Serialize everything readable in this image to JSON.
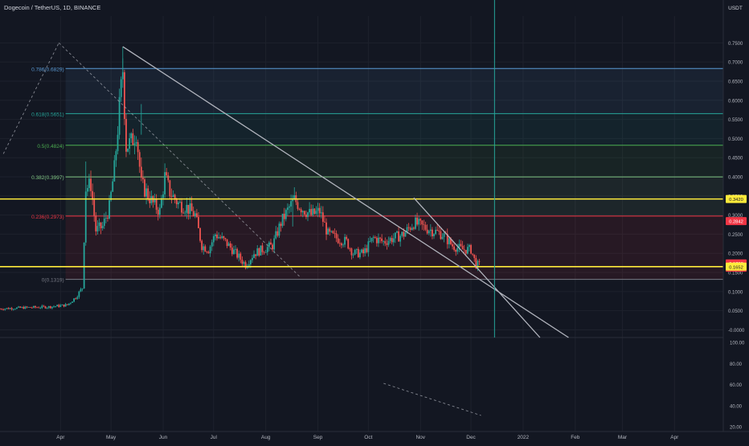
{
  "header": {
    "symbol_title": "Dogecoin / TetherUS, 1D, BINANCE"
  },
  "colors": {
    "background": "#131722",
    "up_candle": "#26a69a",
    "down_candle": "#ef5350",
    "trendline": "#b2b5be",
    "support_resistance": "#ffeb3b",
    "fib_786": "#5b9bd5",
    "fib_618": "#26a69a",
    "fib_500": "#4caf50",
    "fib_382": "#81c784",
    "fib_236": "#f23645",
    "fib_0": "#787b86",
    "price_badge": "#f23645",
    "cursor_line": "#26a69a"
  },
  "price_axis": {
    "currency_label": "USDT",
    "ticks": [
      "0.7500",
      "0.7000",
      "0.6500",
      "0.6000",
      "0.5500",
      "0.5000",
      "0.4500",
      "0.4000",
      "0.3500",
      "0.3000",
      "0.2500",
      "0.2000",
      "0.1500",
      "0.1000",
      "0.0500",
      "-0.0000"
    ],
    "badges": [
      {
        "label": "0.3420",
        "kind": "level",
        "value": 0.342
      },
      {
        "label": "0.2842",
        "kind": "price",
        "value": 0.2842
      },
      {
        "label": "0.1738",
        "kind": "price",
        "value": 0.1738
      },
      {
        "label": "23d 02:40",
        "kind": "price",
        "value": 0.1625
      },
      {
        "label": "0.1652",
        "kind": "level",
        "value": 0.1652
      }
    ]
  },
  "osc_axis": {
    "ticks": [
      "100.00",
      "80.00",
      "60.00",
      "40.00",
      "20.00"
    ]
  },
  "time_axis": {
    "ticks": [
      "Apr",
      "May",
      "Jun",
      "Jul",
      "Aug",
      "Sep",
      "Oct",
      "Nov",
      "Dec",
      "2022",
      "Feb",
      "Mar",
      "Apr"
    ]
  },
  "fib_levels": [
    {
      "label": "0.786(0.6829)",
      "ratio": 0.786,
      "price": 0.6829,
      "color_key": "fib_786"
    },
    {
      "label": "0.618(0.5651)",
      "ratio": 0.618,
      "price": 0.5651,
      "color_key": "fib_618"
    },
    {
      "label": "0.5(0.4824)",
      "ratio": 0.5,
      "price": 0.4824,
      "color_key": "fib_500"
    },
    {
      "label": "0.382(0.3997)",
      "ratio": 0.382,
      "price": 0.3997,
      "color_key": "fib_382"
    },
    {
      "label": "0.236(0.2973)",
      "ratio": 0.236,
      "price": 0.2973,
      "color_key": "fib_236"
    },
    {
      "label": "0(0.1319)",
      "ratio": 0,
      "price": 0.1319,
      "color_key": "fib_0"
    }
  ],
  "horizontal_levels": [
    0.342,
    0.1652
  ],
  "chart_data": {
    "type": "candlestick",
    "title": "Dogecoin / TetherUS, 1D, BINANCE",
    "x_range": [
      "2021-02-24",
      "2022-04-30"
    ],
    "y_range": [
      -0.02,
      0.82
    ],
    "close_series": [
      {
        "date": "2021-02-24",
        "close": 0.055
      },
      {
        "date": "2021-03-10",
        "close": 0.058
      },
      {
        "date": "2021-03-25",
        "close": 0.06
      },
      {
        "date": "2021-04-05",
        "close": 0.065
      },
      {
        "date": "2021-04-10",
        "close": 0.085
      },
      {
        "date": "2021-04-14",
        "close": 0.11
      },
      {
        "date": "2021-04-16",
        "close": 0.37
      },
      {
        "date": "2021-04-19",
        "close": 0.38
      },
      {
        "date": "2021-04-22",
        "close": 0.26
      },
      {
        "date": "2021-04-26",
        "close": 0.27
      },
      {
        "date": "2021-04-30",
        "close": 0.32
      },
      {
        "date": "2021-05-03",
        "close": 0.42
      },
      {
        "date": "2021-05-06",
        "close": 0.58
      },
      {
        "date": "2021-05-08",
        "close": 0.68
      },
      {
        "date": "2021-05-10",
        "close": 0.48
      },
      {
        "date": "2021-05-13",
        "close": 0.49
      },
      {
        "date": "2021-05-16",
        "close": 0.52
      },
      {
        "date": "2021-05-19",
        "close": 0.38
      },
      {
        "date": "2021-05-22",
        "close": 0.36
      },
      {
        "date": "2021-05-26",
        "close": 0.33
      },
      {
        "date": "2021-05-30",
        "close": 0.31
      },
      {
        "date": "2021-06-02",
        "close": 0.4
      },
      {
        "date": "2021-06-05",
        "close": 0.36
      },
      {
        "date": "2021-06-10",
        "close": 0.33
      },
      {
        "date": "2021-06-15",
        "close": 0.32
      },
      {
        "date": "2021-06-20",
        "close": 0.3
      },
      {
        "date": "2021-06-24",
        "close": 0.22
      },
      {
        "date": "2021-06-28",
        "close": 0.21
      },
      {
        "date": "2021-07-02",
        "close": 0.25
      },
      {
        "date": "2021-07-08",
        "close": 0.23
      },
      {
        "date": "2021-07-14",
        "close": 0.2
      },
      {
        "date": "2021-07-20",
        "close": 0.17
      },
      {
        "date": "2021-07-25",
        "close": 0.2
      },
      {
        "date": "2021-07-30",
        "close": 0.21
      },
      {
        "date": "2021-08-05",
        "close": 0.22
      },
      {
        "date": "2021-08-10",
        "close": 0.28
      },
      {
        "date": "2021-08-15",
        "close": 0.32
      },
      {
        "date": "2021-08-18",
        "close": 0.34
      },
      {
        "date": "2021-08-22",
        "close": 0.32
      },
      {
        "date": "2021-08-28",
        "close": 0.3
      },
      {
        "date": "2021-09-02",
        "close": 0.31
      },
      {
        "date": "2021-09-07",
        "close": 0.25
      },
      {
        "date": "2021-09-12",
        "close": 0.24
      },
      {
        "date": "2021-09-18",
        "close": 0.23
      },
      {
        "date": "2021-09-22",
        "close": 0.2
      },
      {
        "date": "2021-09-28",
        "close": 0.2
      },
      {
        "date": "2021-10-04",
        "close": 0.24
      },
      {
        "date": "2021-10-10",
        "close": 0.23
      },
      {
        "date": "2021-10-16",
        "close": 0.24
      },
      {
        "date": "2021-10-22",
        "close": 0.25
      },
      {
        "date": "2021-10-28",
        "close": 0.28
      },
      {
        "date": "2021-11-02",
        "close": 0.27
      },
      {
        "date": "2021-11-08",
        "close": 0.26
      },
      {
        "date": "2021-11-14",
        "close": 0.25
      },
      {
        "date": "2021-11-20",
        "close": 0.22
      },
      {
        "date": "2021-11-26",
        "close": 0.21
      },
      {
        "date": "2021-12-01",
        "close": 0.21
      },
      {
        "date": "2021-12-04",
        "close": 0.17
      },
      {
        "date": "2021-12-07",
        "close": 0.17
      }
    ],
    "trendlines": [
      {
        "from": {
          "date": "2021-05-08",
          "price": 0.74
        },
        "to": {
          "date": "2022-01-28",
          "price": -0.02
        }
      },
      {
        "from": {
          "date": "2021-10-28",
          "price": 0.345
        },
        "to": {
          "date": "2022-01-11",
          "price": -0.02
        }
      },
      {
        "from": {
          "date": "2021-02-26",
          "price": 0.46
        },
        "to": {
          "date": "2021-03-31",
          "price": 0.75
        }
      },
      {
        "from": {
          "date": "2021-03-31",
          "price": 0.75
        },
        "to": {
          "date": "2021-08-21",
          "price": 0.14
        }
      }
    ],
    "cursor_date": "2021-12-15"
  }
}
